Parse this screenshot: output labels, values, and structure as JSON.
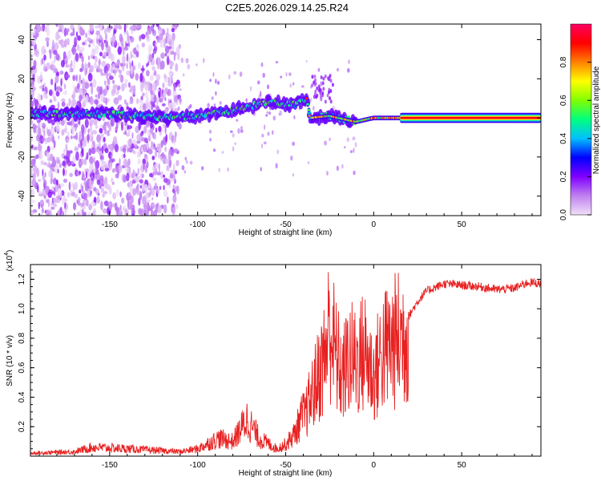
{
  "figure_title": "C2E5.2026.029.14.25.R24",
  "chart_data": [
    {
      "type": "heatmap",
      "title": "C2E5.2026.029.14.25.R24",
      "xlabel": "Height of straight line (km)",
      "ylabel": "Frequency (Hz)",
      "xlim": [
        -195,
        95
      ],
      "ylim": [
        -50,
        48
      ],
      "xticks": [
        -150,
        -100,
        -50,
        0,
        50
      ],
      "xtick_labels": [
        "-150",
        "-100",
        "-50",
        "0",
        "50"
      ],
      "yticks": [
        -40,
        -20,
        0,
        20,
        40
      ],
      "ytick_labels": [
        "-40",
        "-20",
        "0",
        "20",
        "40"
      ],
      "colorbar": {
        "label": "Normalized spectral amplitude",
        "range": [
          0,
          1
        ],
        "ticks": [
          0,
          0.2,
          0.4,
          0.6,
          0.8
        ],
        "tick_labels": [
          "0.0",
          "0.2",
          "0.4",
          "0.6",
          "0.8"
        ],
        "colormap": [
          "#f0e0f8",
          "#c080f0",
          "#8000ff",
          "#0000ff",
          "#00c0ff",
          "#00ff80",
          "#80ff00",
          "#ffff00",
          "#ff8000",
          "#ff0000",
          "#ff0060"
        ]
      },
      "ridge": {
        "description_points_km_hz": [
          [
            -195,
            2
          ],
          [
            -150,
            2
          ],
          [
            -115,
            0
          ],
          [
            -100,
            1
          ],
          [
            -80,
            4
          ],
          [
            -60,
            8
          ],
          [
            -45,
            7
          ],
          [
            -38,
            10
          ],
          [
            -36,
            0
          ],
          [
            -25,
            1
          ],
          [
            -10,
            -2
          ],
          [
            0,
            0
          ],
          [
            15,
            0
          ],
          [
            95,
            0
          ]
        ],
        "peak_amplitude_region_km": [
          20,
          95
        ]
      }
    },
    {
      "type": "line",
      "xlabel": "Height of straight line (km)",
      "ylabel": "SNR (10 * v/v)",
      "y_multiplier_label": "(x10",
      "y_multiplier_exp": "4",
      "y_multiplier_close": ")",
      "xlim": [
        -195,
        95
      ],
      "ylim": [
        0,
        1.3
      ],
      "xticks": [
        -150,
        -100,
        -50,
        0,
        50
      ],
      "xtick_labels": [
        "-150",
        "-100",
        "-50",
        "0",
        "50"
      ],
      "yticks": [
        0.2,
        0.4,
        0.6,
        0.8,
        1.0,
        1.2
      ],
      "ytick_labels": [
        "0.2",
        "0.4",
        "0.6",
        "0.8",
        "1.0",
        "1.2"
      ],
      "series": [
        {
          "name": "SNR",
          "color": "#e82020",
          "envelope_km_value": [
            [
              -195,
              0.02
            ],
            [
              -170,
              0.03
            ],
            [
              -160,
              0.06
            ],
            [
              -140,
              0.05
            ],
            [
              -110,
              0.03
            ],
            [
              -100,
              0.05
            ],
            [
              -88,
              0.12
            ],
            [
              -80,
              0.1
            ],
            [
              -72,
              0.25
            ],
            [
              -65,
              0.12
            ],
            [
              -55,
              0.05
            ],
            [
              -50,
              0.08
            ],
            [
              -45,
              0.15
            ],
            [
              -38,
              0.35
            ],
            [
              -33,
              0.55
            ],
            [
              -28,
              0.75
            ],
            [
              -25,
              1.0
            ],
            [
              -22,
              0.8
            ],
            [
              -18,
              0.6
            ],
            [
              -14,
              0.75
            ],
            [
              -10,
              0.72
            ],
            [
              -5,
              0.8
            ],
            [
              0,
              0.6
            ],
            [
              5,
              0.8
            ],
            [
              10,
              0.85
            ],
            [
              15,
              0.9
            ],
            [
              20,
              0.95
            ],
            [
              25,
              1.05
            ],
            [
              30,
              1.12
            ],
            [
              40,
              1.17
            ],
            [
              50,
              1.16
            ],
            [
              60,
              1.15
            ],
            [
              70,
              1.13
            ],
            [
              80,
              1.14
            ],
            [
              88,
              1.18
            ],
            [
              95,
              1.17
            ]
          ]
        }
      ]
    }
  ]
}
